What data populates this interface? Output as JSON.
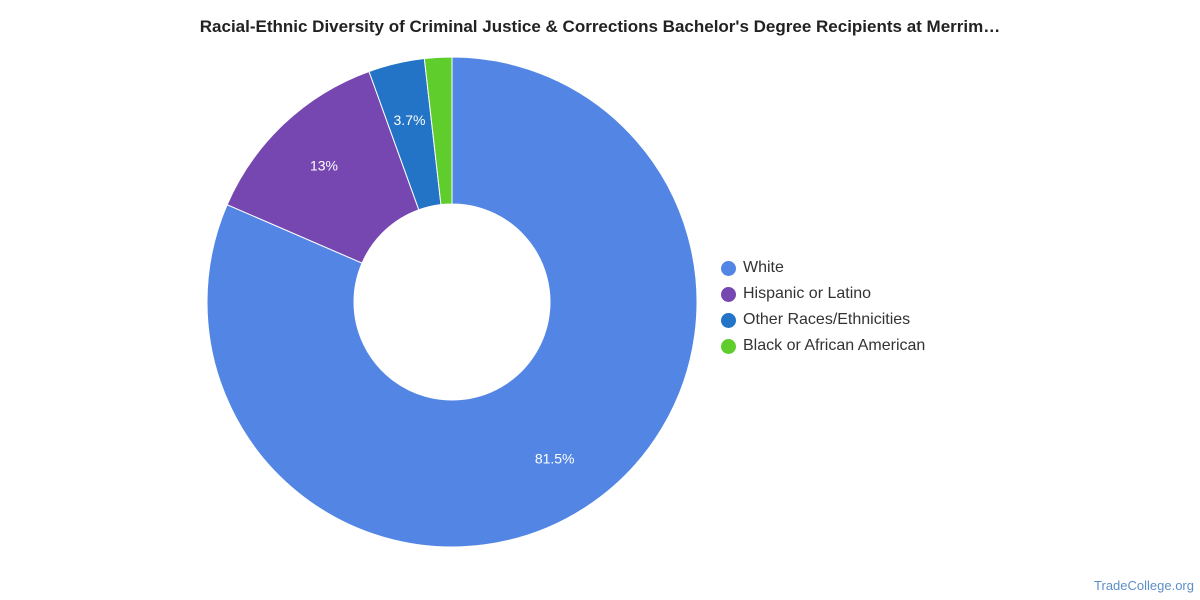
{
  "chart_data": {
    "type": "pie",
    "title": "Racial-Ethnic Diversity of Criminal Justice & Corrections Bachelor's Degree Recipients at Merrim…",
    "categories": [
      "White",
      "Hispanic or Latino",
      "Other Races/Ethnicities",
      "Black or African American"
    ],
    "values": [
      81.5,
      13,
      3.7,
      1.8
    ],
    "data_labels": [
      "81.5%",
      "13%",
      "3.7%",
      ""
    ],
    "colors": [
      "#5386e4",
      "#7647b0",
      "#2374c6",
      "#5fce2c"
    ],
    "legend_position": "right"
  },
  "watermark": "TradeCollege.org"
}
